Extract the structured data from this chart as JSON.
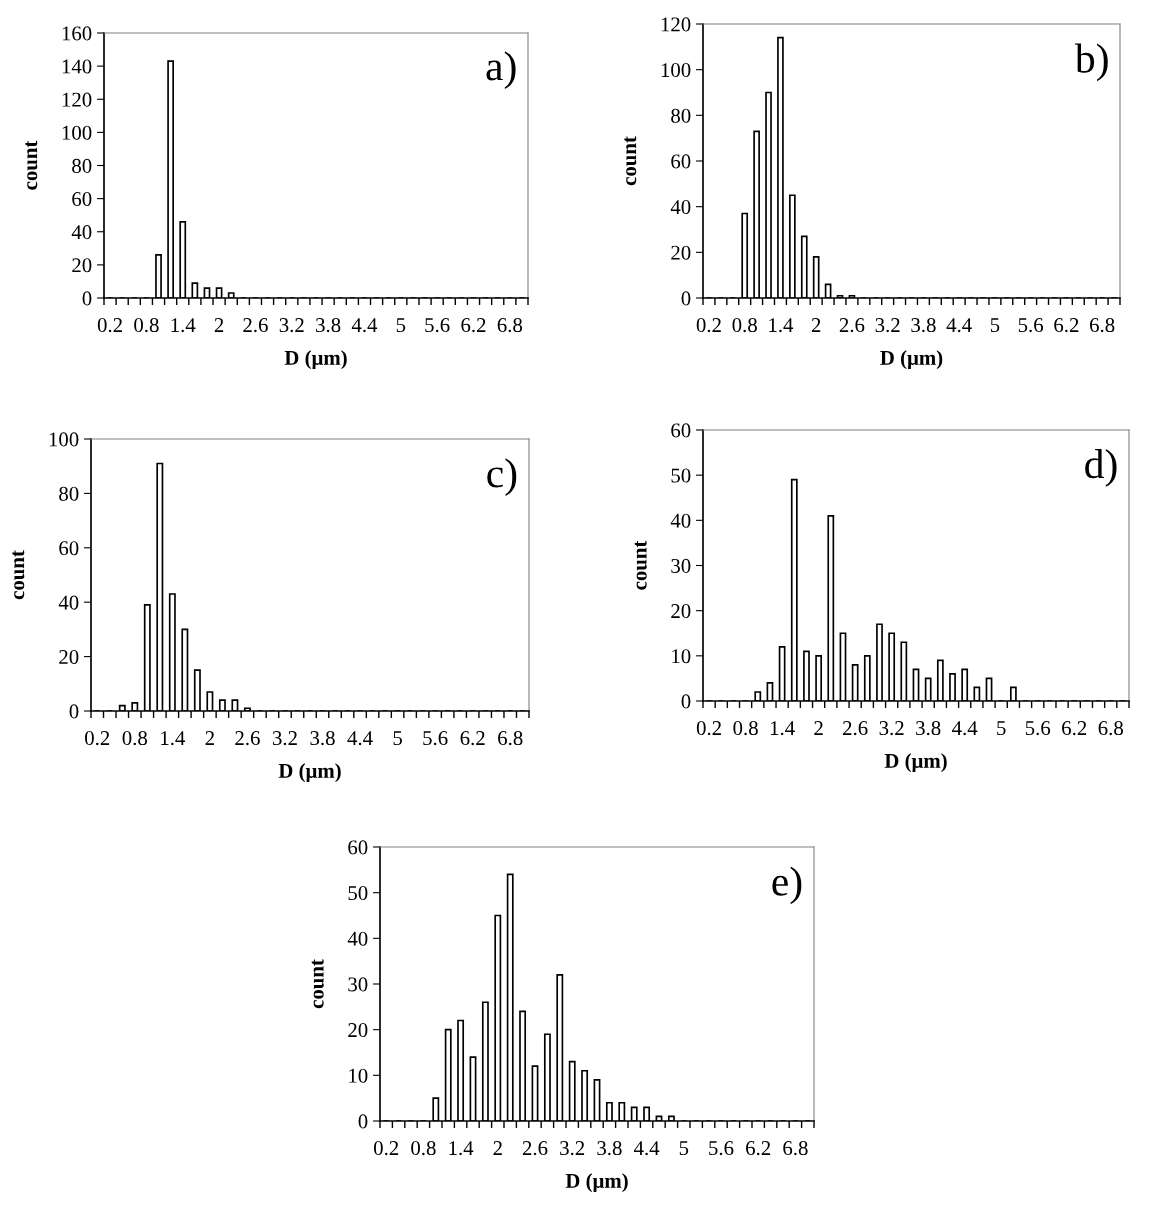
{
  "chart_data": [
    {
      "type": "bar",
      "xlabel": "D (μm)",
      "ylabel": "count",
      "annotations": [
        "a)"
      ],
      "color": "#ffffff",
      "ylim": [
        0,
        160
      ],
      "yticks": [
        0,
        20,
        40,
        60,
        80,
        100,
        120,
        140,
        160
      ],
      "categories": [
        "0.2",
        null,
        null,
        "0.8",
        null,
        null,
        "1.4",
        null,
        null,
        "2",
        null,
        null,
        "2.6",
        null,
        null,
        "3.2",
        null,
        null,
        "3.8",
        null,
        null,
        "4.4",
        null,
        null,
        "5",
        null,
        null,
        "5.6",
        null,
        null,
        "6.2",
        null,
        null,
        "6.8",
        null
      ],
      "values": [
        0,
        0,
        0,
        0,
        26,
        143,
        46,
        9,
        6,
        6,
        3,
        0,
        0,
        0,
        0,
        0,
        0,
        0,
        0,
        0,
        0,
        0,
        0,
        0,
        0,
        0,
        0,
        0,
        0,
        0,
        0,
        0,
        0,
        0,
        0
      ]
    },
    {
      "type": "bar",
      "xlabel": "D (μm)",
      "ylabel": "count",
      "annotations": [
        "b)"
      ],
      "color": "#ffffff",
      "ylim": [
        0,
        120
      ],
      "yticks": [
        0,
        20,
        40,
        60,
        80,
        100,
        120
      ],
      "categories": [
        "0.2",
        null,
        null,
        "0.8",
        null,
        null,
        "1.4",
        null,
        null,
        "2",
        null,
        null,
        "2.6",
        null,
        null,
        "3.2",
        null,
        null,
        "3.8",
        null,
        null,
        "4.4",
        null,
        null,
        "5",
        null,
        null,
        "5.6",
        null,
        null,
        "6.2",
        null,
        null,
        "6.8",
        null
      ],
      "values": [
        0,
        0,
        0,
        37,
        73,
        90,
        114,
        45,
        27,
        18,
        6,
        1,
        1,
        0,
        0,
        0,
        0,
        0,
        0,
        0,
        0,
        0,
        0,
        0,
        0,
        0,
        0,
        0,
        0,
        0,
        0,
        0,
        0,
        0,
        0
      ]
    },
    {
      "type": "bar",
      "xlabel": "D (μm)",
      "ylabel": "count",
      "annotations": [
        "c)"
      ],
      "color": "#ffffff",
      "ylim": [
        0,
        100
      ],
      "yticks": [
        0,
        20,
        40,
        60,
        80,
        100
      ],
      "categories": [
        "0.2",
        null,
        null,
        "0.8",
        null,
        null,
        "1.4",
        null,
        null,
        "2",
        null,
        null,
        "2.6",
        null,
        null,
        "3.2",
        null,
        null,
        "3.8",
        null,
        null,
        "4.4",
        null,
        null,
        "5",
        null,
        null,
        "5.6",
        null,
        null,
        "6.2",
        null,
        null,
        "6.8",
        null
      ],
      "values": [
        0,
        0,
        2,
        3,
        39,
        91,
        43,
        30,
        15,
        7,
        4,
        4,
        1,
        0,
        0,
        0,
        0,
        0,
        0,
        0,
        0,
        0,
        0,
        0,
        0,
        0,
        0,
        0,
        0,
        0,
        0,
        0,
        0,
        0,
        0
      ]
    },
    {
      "type": "bar",
      "xlabel": "D (μm)",
      "ylabel": "count",
      "annotations": [
        "d)"
      ],
      "color": "#ffffff",
      "ylim": [
        0,
        60
      ],
      "yticks": [
        0,
        10,
        20,
        30,
        40,
        50,
        60
      ],
      "categories": [
        "0.2",
        null,
        null,
        "0.8",
        null,
        null,
        "1.4",
        null,
        null,
        "2",
        null,
        null,
        "2.6",
        null,
        null,
        "3.2",
        null,
        null,
        "3.8",
        null,
        null,
        "4.4",
        null,
        null,
        "5",
        null,
        null,
        "5.6",
        null,
        null,
        "6.2",
        null,
        null,
        "6.8",
        null
      ],
      "values": [
        0,
        0,
        0,
        0,
        2,
        4,
        12,
        49,
        11,
        10,
        41,
        15,
        8,
        10,
        17,
        15,
        13,
        7,
        5,
        9,
        6,
        7,
        3,
        5,
        0,
        3,
        0,
        0,
        0,
        0,
        0,
        0,
        0,
        0,
        0
      ]
    },
    {
      "type": "bar",
      "xlabel": "D (μm)",
      "ylabel": "count",
      "annotations": [
        "e)"
      ],
      "color": "#ffffff",
      "ylim": [
        0,
        60
      ],
      "yticks": [
        0,
        10,
        20,
        30,
        40,
        50,
        60
      ],
      "categories": [
        "0.2",
        null,
        null,
        "0.8",
        null,
        null,
        "1.4",
        null,
        null,
        "2",
        null,
        null,
        "2.6",
        null,
        null,
        "3.2",
        null,
        null,
        "3.8",
        null,
        null,
        "4.4",
        null,
        null,
        "5",
        null,
        null,
        "5.6",
        null,
        null,
        "6.2",
        null,
        null,
        "6.8",
        null
      ],
      "values": [
        0,
        0,
        0,
        0,
        5,
        20,
        22,
        14,
        26,
        45,
        54,
        24,
        12,
        19,
        32,
        13,
        11,
        9,
        4,
        4,
        3,
        3,
        1,
        1,
        0,
        0,
        0,
        0,
        0,
        0,
        0,
        0,
        0,
        0,
        0
      ]
    }
  ]
}
